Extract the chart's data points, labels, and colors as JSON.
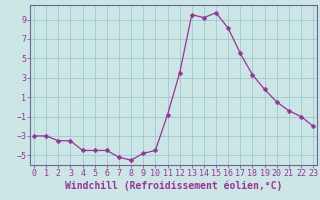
{
  "x": [
    0,
    1,
    2,
    3,
    4,
    5,
    6,
    7,
    8,
    9,
    10,
    11,
    12,
    13,
    14,
    15,
    16,
    17,
    18,
    19,
    20,
    21,
    22,
    23
  ],
  "y": [
    -3,
    -3,
    -3.5,
    -3.5,
    -4.5,
    -4.5,
    -4.5,
    -5.2,
    -5.5,
    -4.8,
    -4.5,
    -0.8,
    3.5,
    9.5,
    9.2,
    9.7,
    8.1,
    5.5,
    3.3,
    1.8,
    0.5,
    -0.4,
    -1.0,
    -2.0
  ],
  "line_color": "#993399",
  "marker": "D",
  "marker_size": 2.5,
  "bg_color": "#cce5e5",
  "grid_color": "#99cccc",
  "axis_color": "#777799",
  "spine_color": "#666699",
  "xlabel": "Windchill (Refroidissement éolien,°C)",
  "xlabel_fontsize": 7,
  "tick_fontsize": 6,
  "yticks": [
    -5,
    -3,
    -1,
    1,
    3,
    5,
    7,
    9
  ],
  "xticks": [
    0,
    1,
    2,
    3,
    4,
    5,
    6,
    7,
    8,
    9,
    10,
    11,
    12,
    13,
    14,
    15,
    16,
    17,
    18,
    19,
    20,
    21,
    22,
    23
  ],
  "ylim": [
    -6.0,
    10.5
  ],
  "xlim": [
    -0.3,
    23.3
  ]
}
